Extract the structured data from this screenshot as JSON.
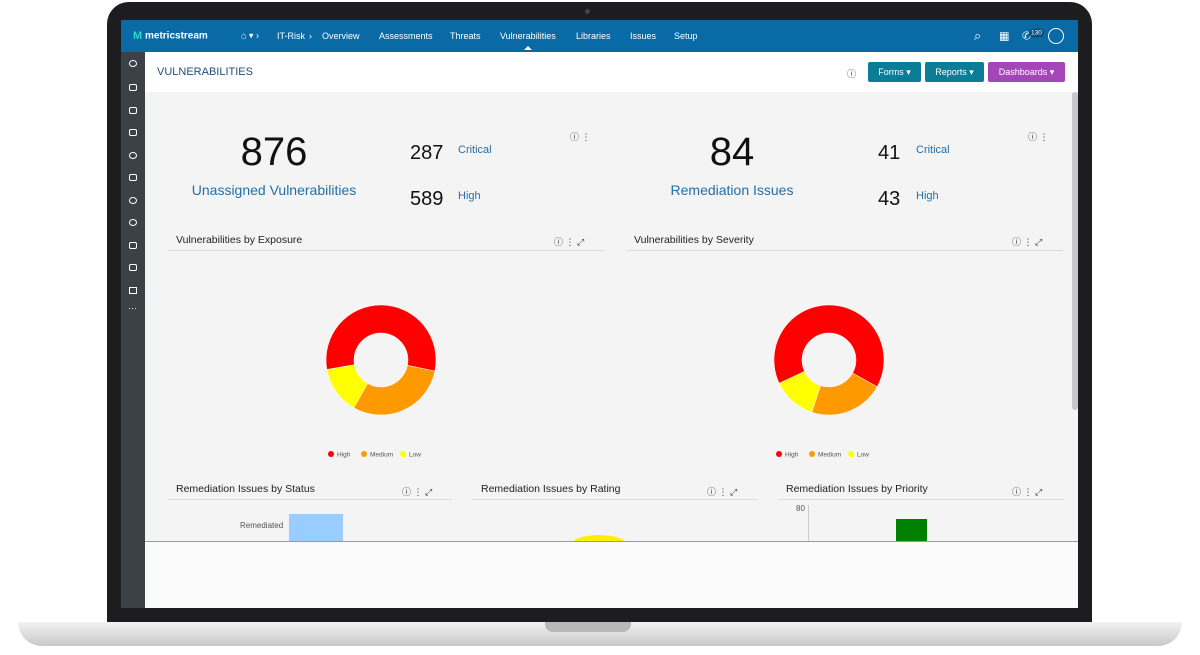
{
  "brand": "metricstream",
  "nav": {
    "breadcrumb": "IT-Risk",
    "items": [
      "Overview",
      "Assessments",
      "Threats",
      "Vulnerabilities",
      "Libraries",
      "Issues",
      "Setup"
    ],
    "notification_count": 130
  },
  "page": {
    "title": "VULNERABILITIES",
    "buttons": [
      "Forms",
      "Reports",
      "Dashboards"
    ]
  },
  "kpis": [
    {
      "value": 876,
      "label": "Unassigned Vulnerabilities",
      "breakdown": [
        {
          "value": 287,
          "label": "Critical"
        },
        {
          "value": 589,
          "label": "High"
        }
      ]
    },
    {
      "value": 84,
      "label": "Remediation Issues",
      "breakdown": [
        {
          "value": 41,
          "label": "Critical"
        },
        {
          "value": 43,
          "label": "High"
        }
      ]
    }
  ],
  "chart_data": [
    {
      "type": "pie",
      "donut": true,
      "title": "Vulnerabilities by Exposure",
      "categories": [
        "High",
        "Medium",
        "Low"
      ],
      "values": [
        56,
        30,
        14
      ],
      "colors": [
        "#ff0000",
        "#ff9900",
        "#ffff00"
      ],
      "start_angle": -100
    },
    {
      "type": "pie",
      "donut": true,
      "title": "Vulnerabilities by Severity",
      "categories": [
        "High",
        "Medium",
        "Low"
      ],
      "values": [
        65,
        22,
        13
      ],
      "colors": [
        "#ff0000",
        "#ff9900",
        "#ffff00"
      ],
      "start_angle": -115
    }
  ],
  "panels": [
    {
      "title": "Remediation Issues by Status",
      "category": "Remediated"
    },
    {
      "title": "Remediation Issues by Rating"
    },
    {
      "title": "Remediation Issues by Priority",
      "ytick": 80
    }
  ]
}
